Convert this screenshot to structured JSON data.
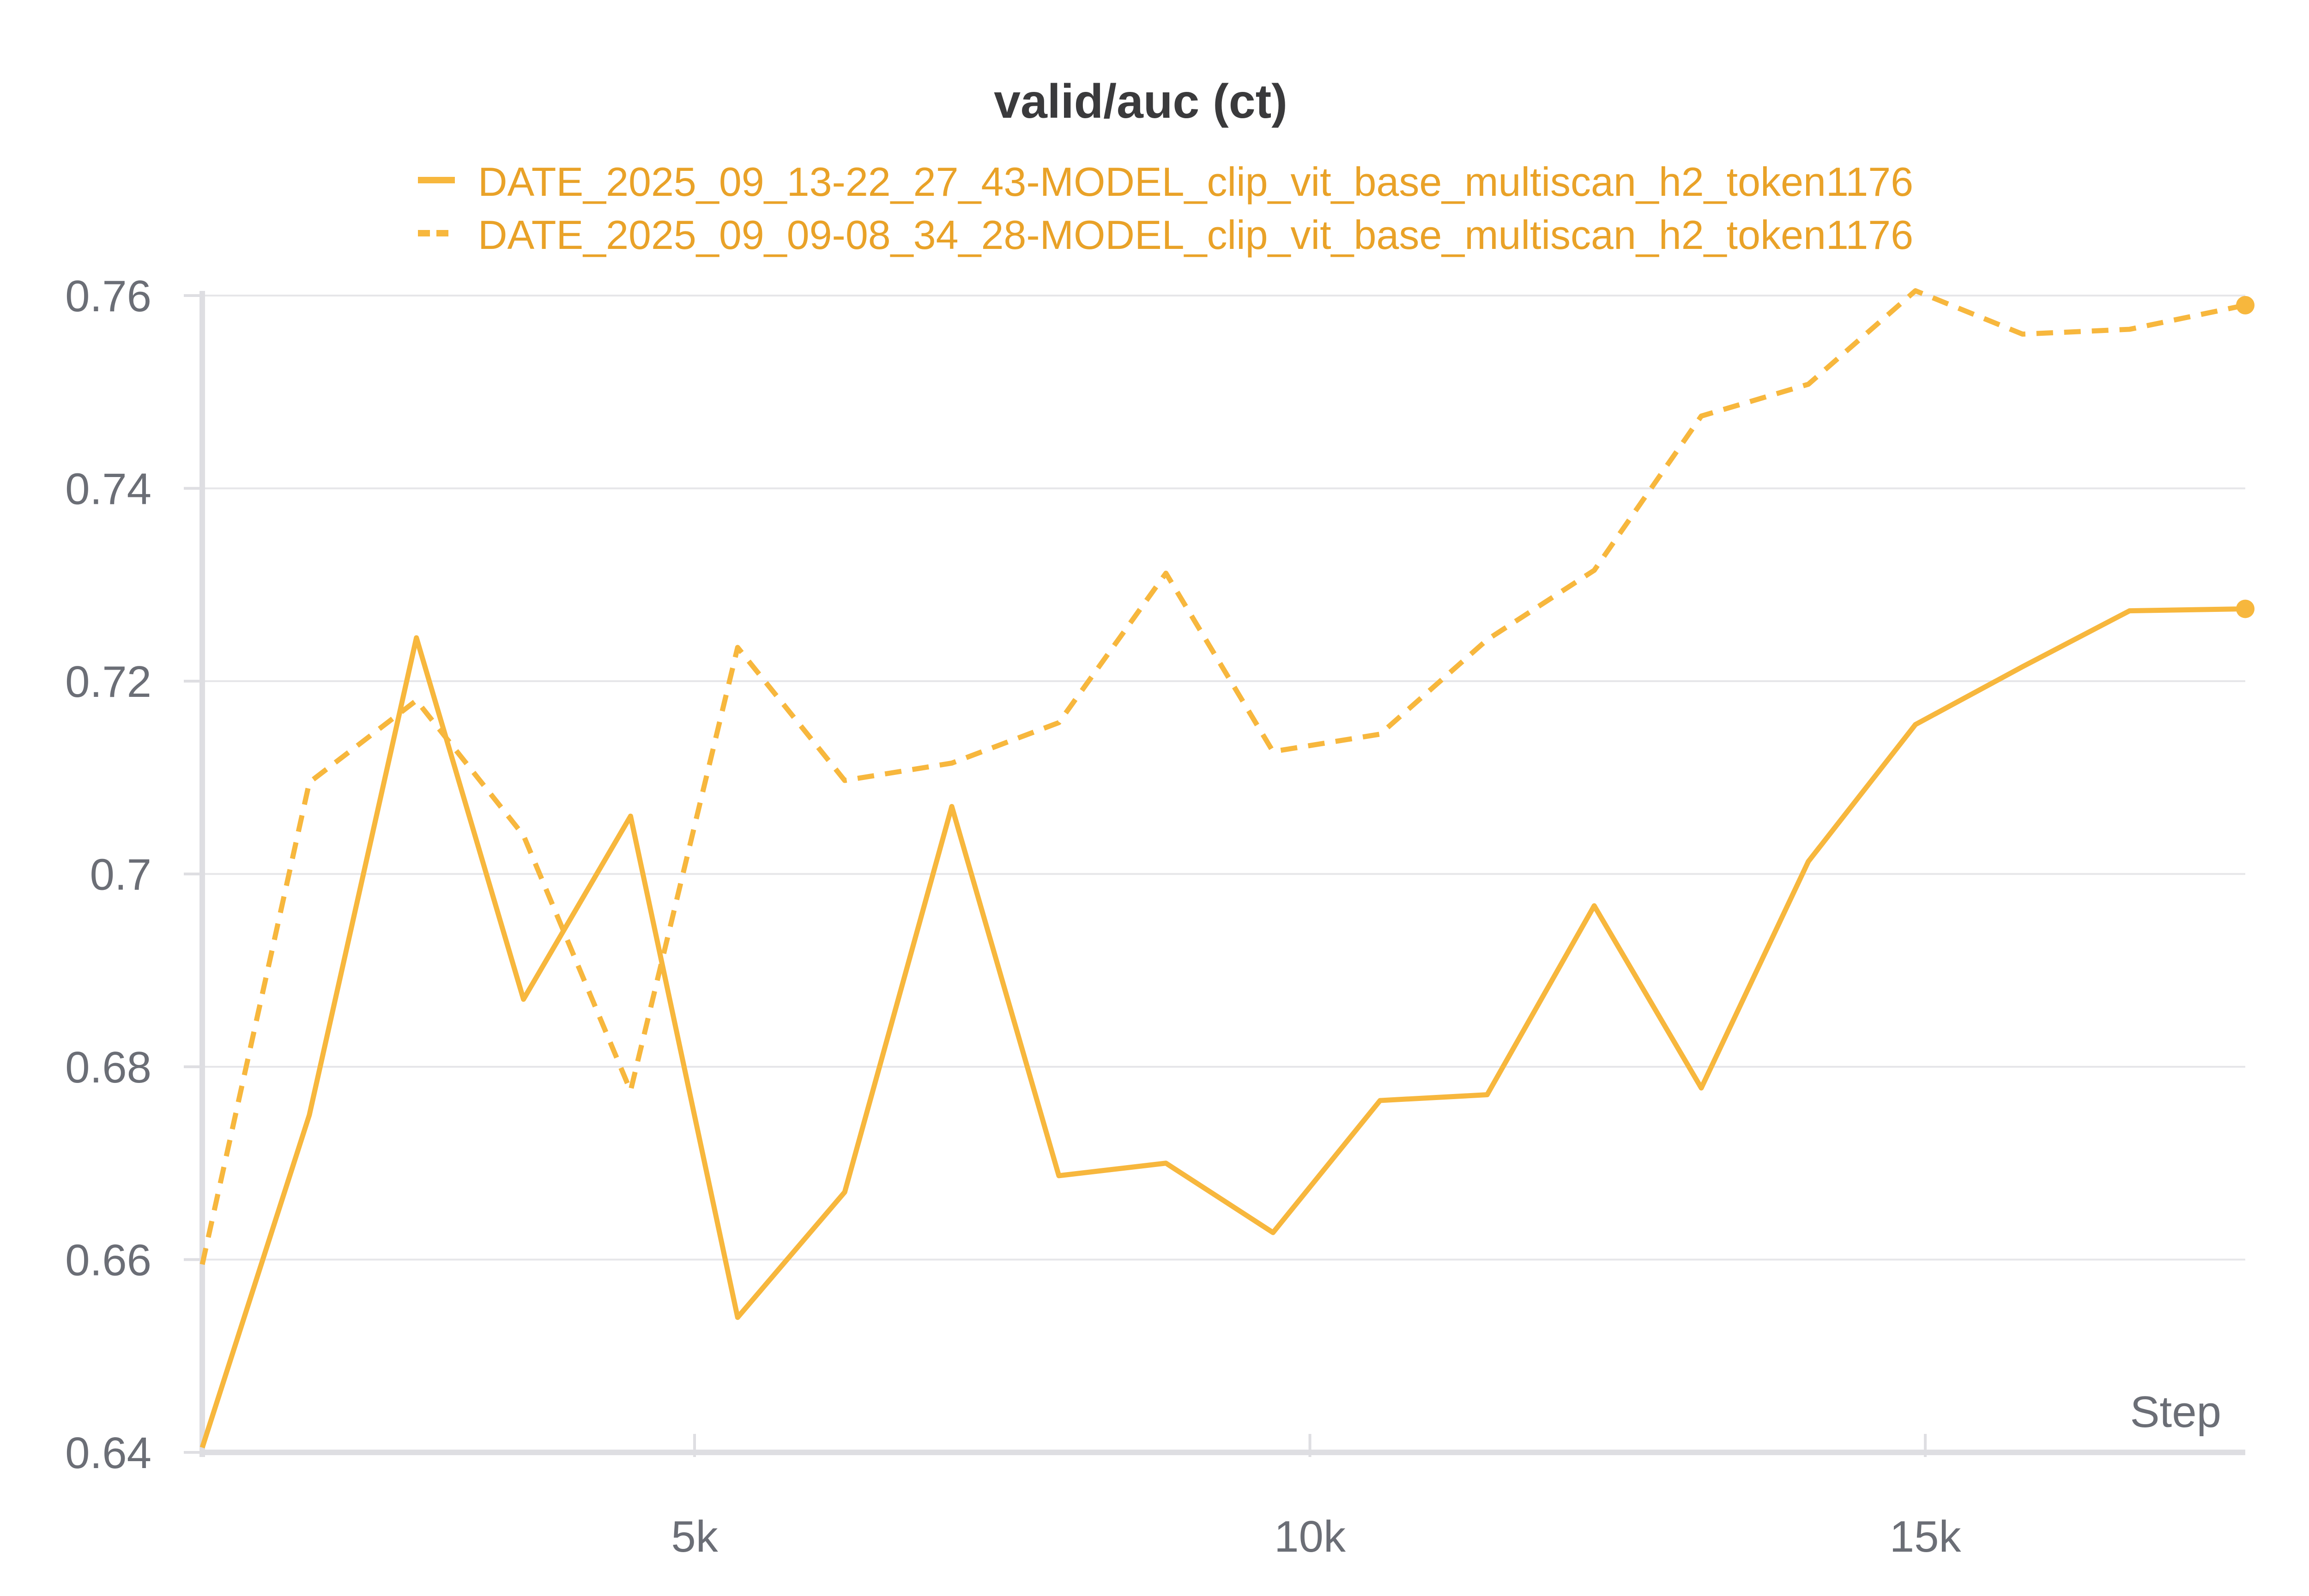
{
  "chart_data": {
    "type": "line",
    "title": "valid/auc (ct)",
    "xlabel": "Step",
    "ylabel": "",
    "xlim": [
      1000,
      17600
    ],
    "ylim": [
      0.64,
      0.76
    ],
    "grid": true,
    "legend_position": "top",
    "x_ticks": [
      5000,
      10000,
      15000
    ],
    "x_tick_labels": [
      "5k",
      "10k",
      "15k"
    ],
    "y_ticks": [
      0.64,
      0.66,
      0.68,
      0.7,
      0.72,
      0.74,
      0.76
    ],
    "y_tick_labels": [
      "0.64",
      "0.66",
      "0.68",
      "0.7",
      "0.72",
      "0.74",
      "0.76"
    ],
    "series": [
      {
        "name": "DATE_2025_09_13-22_27_43-MODEL_clip_vit_base_multiscan_h2_token1176",
        "style": "solid",
        "color": "#f7b73d",
        "x": [
          1000,
          1870,
          2740,
          3610,
          4480,
          5350,
          6220,
          7090,
          7960,
          8830,
          9700,
          10570,
          11440,
          12310,
          13180,
          14050,
          14920,
          15790,
          16660,
          17600
        ],
        "y": [
          0.6405,
          0.675,
          0.7245,
          0.687,
          0.706,
          0.654,
          0.667,
          0.707,
          0.6687,
          0.67,
          0.6628,
          0.6765,
          0.6771,
          0.6967,
          0.6778,
          0.7013,
          0.7155,
          0.7215,
          0.7273,
          0.7275
        ]
      },
      {
        "name": "DATE_2025_09_09-08_34_28-MODEL_clip_vit_base_multiscan_h2_token1176",
        "style": "dashed",
        "color": "#f7b73d",
        "x": [
          1000,
          1870,
          2740,
          3610,
          4480,
          5350,
          6220,
          7090,
          7960,
          8830,
          9700,
          10570,
          11440,
          12310,
          13180,
          14050,
          14920,
          15790,
          16660,
          17600
        ],
        "y": [
          0.6595,
          0.7095,
          0.718,
          0.704,
          0.6775,
          0.7235,
          0.7097,
          0.7115,
          0.7157,
          0.7312,
          0.7127,
          0.7145,
          0.7243,
          0.7315,
          0.7475,
          0.7508,
          0.7605,
          0.756,
          0.7565,
          0.759
        ]
      }
    ]
  }
}
